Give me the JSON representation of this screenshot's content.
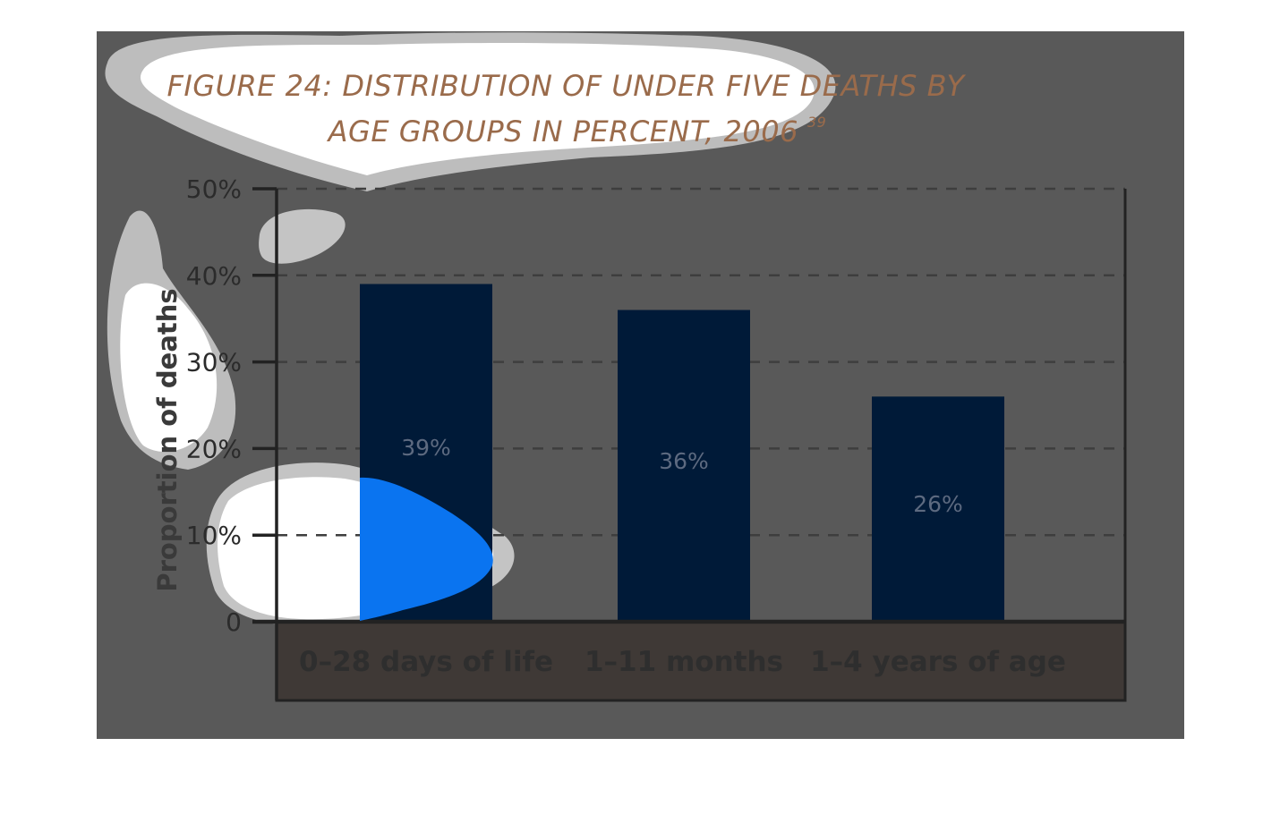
{
  "colors": {
    "panel": "#595959",
    "bar": "#001a38",
    "category_band": "#3f3936",
    "gridline": "#3e3e3e",
    "axis": "#222222",
    "title": "#9a6b4b",
    "highlight": "#0a74f0"
  },
  "chart_data": {
    "type": "bar",
    "title_lines": [
      "FIGURE 24: DISTRIBUTION OF UNDER FIVE DEATHS BY",
      "AGE GROUPS IN PERCENT, 2006"
    ],
    "title_superscript": "39",
    "ylabel": "Proportion of deaths",
    "xlabel": "",
    "categories": [
      "0–28 days of life",
      "1–11 months",
      "1–4 years of age"
    ],
    "values": [
      39,
      36,
      26
    ],
    "data_labels": [
      "39%",
      "36%",
      "26%"
    ],
    "ylim": [
      0,
      50
    ],
    "yticks": [
      0,
      10,
      20,
      30,
      40,
      50
    ],
    "ytick_labels": [
      "0",
      "10%",
      "20%",
      "30%",
      "40%",
      "50%"
    ],
    "grid": true,
    "legend": "none"
  }
}
